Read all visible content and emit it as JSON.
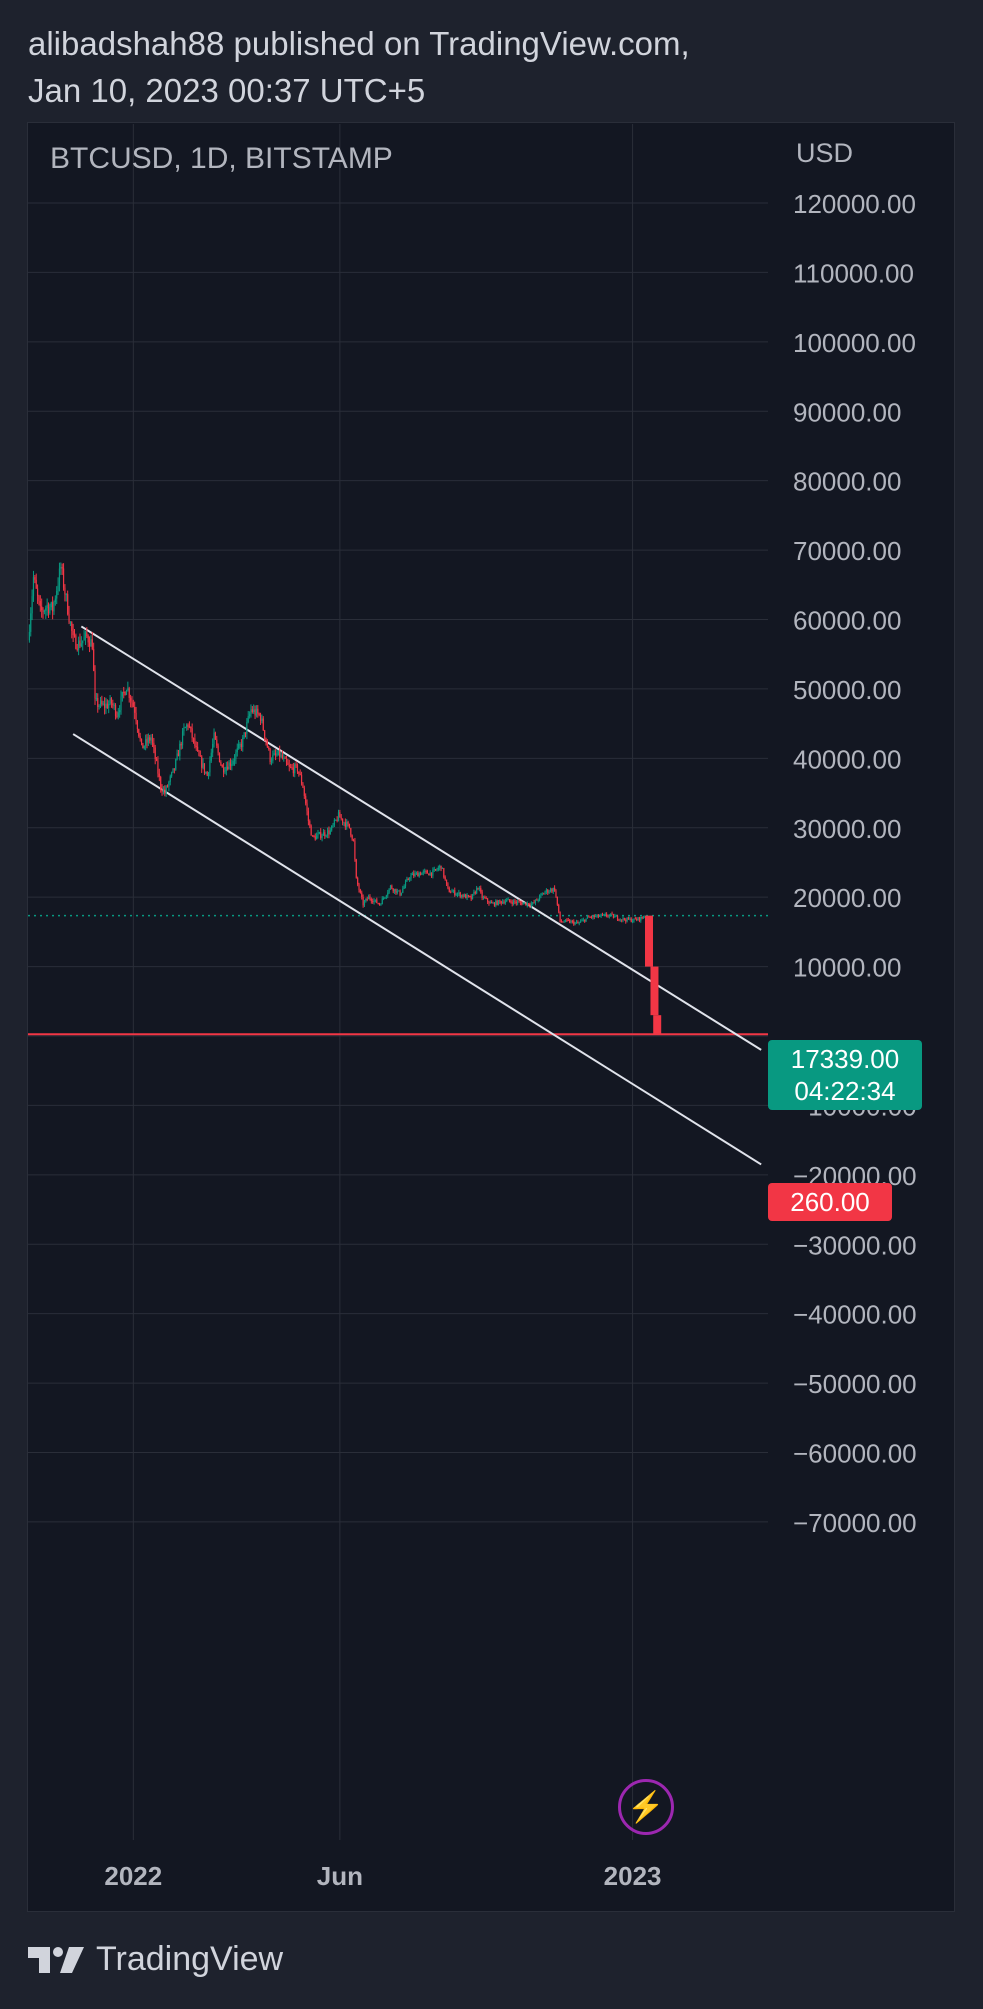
{
  "header": {
    "line1": "alibadshah88 published on TradingView.com,",
    "line2": "Jan 10, 2023 00:37 UTC+5"
  },
  "chart_data": {
    "type": "candlestick",
    "symbol_label": "BTCUSD, 1D, BITSTAMP",
    "currency": "USD",
    "ylim": [
      -75000,
      125000
    ],
    "y_ticks": [
      {
        "value": 120000,
        "label": "120000.00"
      },
      {
        "value": 110000,
        "label": "110000.00"
      },
      {
        "value": 100000,
        "label": "100000.00"
      },
      {
        "value": 90000,
        "label": "90000.00"
      },
      {
        "value": 80000,
        "label": "80000.00"
      },
      {
        "value": 70000,
        "label": "70000.00"
      },
      {
        "value": 60000,
        "label": "60000.00"
      },
      {
        "value": 50000,
        "label": "50000.00"
      },
      {
        "value": 40000,
        "label": "40000.00"
      },
      {
        "value": 30000,
        "label": "30000.00"
      },
      {
        "value": 20000,
        "label": "20000.00"
      },
      {
        "value": 10000,
        "label": "10000.00"
      },
      {
        "value": -10000,
        "label": "−10000.00"
      },
      {
        "value": -20000,
        "label": "−20000.00"
      },
      {
        "value": -30000,
        "label": "−30000.00"
      },
      {
        "value": -40000,
        "label": "−40000.00"
      },
      {
        "value": -50000,
        "label": "−50000.00"
      },
      {
        "value": -60000,
        "label": "−60000.00"
      },
      {
        "value": -70000,
        "label": "−70000.00"
      }
    ],
    "x_ticks": [
      {
        "date": "2022-01-01",
        "label": "2022"
      },
      {
        "date": "2022-06-01",
        "label": "Jun"
      },
      {
        "date": "2023-01-01",
        "label": "2023"
      }
    ],
    "xlim": [
      "2021-10-16",
      "2023-04-10"
    ],
    "price_path": [
      [
        "2021-10-16",
        57000
      ],
      [
        "2021-10-20",
        66000
      ],
      [
        "2021-10-25",
        61000
      ],
      [
        "2021-10-30",
        62000
      ],
      [
        "2021-11-03",
        61500
      ],
      [
        "2021-11-09",
        67500
      ],
      [
        "2021-11-12",
        64000
      ],
      [
        "2021-11-18",
        57000
      ],
      [
        "2021-11-22",
        56500
      ],
      [
        "2021-11-28",
        57500
      ],
      [
        "2021-12-02",
        56500
      ],
      [
        "2021-12-04",
        48000
      ],
      [
        "2021-12-10",
        47500
      ],
      [
        "2021-12-16",
        48000
      ],
      [
        "2021-12-20",
        46500
      ],
      [
        "2021-12-27",
        50500
      ],
      [
        "2022-01-02",
        47000
      ],
      [
        "2022-01-07",
        41500
      ],
      [
        "2022-01-14",
        43000
      ],
      [
        "2022-01-21",
        36000
      ],
      [
        "2022-01-24",
        35000
      ],
      [
        "2022-01-31",
        38500
      ],
      [
        "2022-02-07",
        44000
      ],
      [
        "2022-02-10",
        45000
      ],
      [
        "2022-02-17",
        40500
      ],
      [
        "2022-02-24",
        37500
      ],
      [
        "2022-03-01",
        43000
      ],
      [
        "2022-03-07",
        38500
      ],
      [
        "2022-03-14",
        39500
      ],
      [
        "2022-03-22",
        42500
      ],
      [
        "2022-03-28",
        47000
      ],
      [
        "2022-04-04",
        46000
      ],
      [
        "2022-04-11",
        40000
      ],
      [
        "2022-04-18",
        40500
      ],
      [
        "2022-04-25",
        38500
      ],
      [
        "2022-05-01",
        38500
      ],
      [
        "2022-05-05",
        36000
      ],
      [
        "2022-05-09",
        31000
      ],
      [
        "2022-05-12",
        28500
      ],
      [
        "2022-05-18",
        29000
      ],
      [
        "2022-05-25",
        29500
      ],
      [
        "2022-05-31",
        31700
      ],
      [
        "2022-06-08",
        30000
      ],
      [
        "2022-06-11",
        28000
      ],
      [
        "2022-06-13",
        22500
      ],
      [
        "2022-06-18",
        19000
      ],
      [
        "2022-06-22",
        20000
      ],
      [
        "2022-06-30",
        19000
      ],
      [
        "2022-07-08",
        21500
      ],
      [
        "2022-07-15",
        20500
      ],
      [
        "2022-07-22",
        23000
      ],
      [
        "2022-07-30",
        23500
      ],
      [
        "2022-08-08",
        23500
      ],
      [
        "2022-08-14",
        24500
      ],
      [
        "2022-08-19",
        21000
      ],
      [
        "2022-08-26",
        20500
      ],
      [
        "2022-09-05",
        19800
      ],
      [
        "2022-09-10",
        21500
      ],
      [
        "2022-09-13",
        20000
      ],
      [
        "2022-09-20",
        19000
      ],
      [
        "2022-09-30",
        19500
      ],
      [
        "2022-10-10",
        19200
      ],
      [
        "2022-10-20",
        19000
      ],
      [
        "2022-10-29",
        20800
      ],
      [
        "2022-11-05",
        21200
      ],
      [
        "2022-11-09",
        16500
      ],
      [
        "2022-11-15",
        16500
      ],
      [
        "2022-11-22",
        16200
      ],
      [
        "2022-11-30",
        17100
      ],
      [
        "2022-12-05",
        17200
      ],
      [
        "2022-12-15",
        17400
      ],
      [
        "2022-12-25",
        16800
      ],
      [
        "2023-01-02",
        16700
      ],
      [
        "2023-01-08",
        17000
      ],
      [
        "2023-01-10",
        17339
      ]
    ],
    "projection": [
      [
        "2023-01-10",
        17339
      ],
      [
        "2023-01-13",
        10000
      ],
      [
        "2023-01-17",
        3000
      ],
      [
        "2023-01-19",
        260
      ]
    ],
    "channel": {
      "upper": [
        [
          "2021-11-24",
          59000
        ],
        [
          "2023-04-05",
          -2000
        ]
      ],
      "lower": [
        [
          "2021-11-18",
          43500
        ],
        [
          "2023-04-05",
          -18500
        ]
      ]
    },
    "last_price": {
      "value": 17339,
      "label": "17339.00",
      "countdown": "04:22:34"
    },
    "target_line": {
      "value": 260,
      "label": "260.00"
    },
    "colors": {
      "up": "#089981",
      "down": "#f23645",
      "channel": "#e0e3eb",
      "grid": "#2a2e39",
      "target": "#f23645",
      "last": "#089981"
    }
  },
  "footer": {
    "brand": "TradingView"
  }
}
